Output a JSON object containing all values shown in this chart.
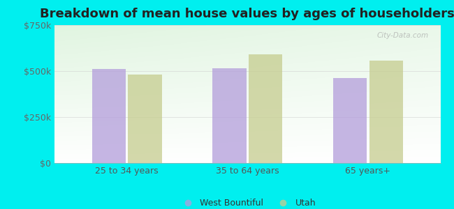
{
  "title": "Breakdown of mean house values by ages of householders",
  "categories": [
    "25 to 34 years",
    "35 to 64 years",
    "65 years+"
  ],
  "series": {
    "West Bountiful": [
      510000,
      515000,
      463000
    ],
    "Utah": [
      480000,
      590000,
      558000
    ]
  },
  "bar_colors": {
    "West Bountiful": "#b39ddb",
    "Utah": "#c5cc8e"
  },
  "ylim": [
    0,
    750000
  ],
  "yticks": [
    0,
    250000,
    500000,
    750000
  ],
  "ytick_labels": [
    "$0",
    "$250k",
    "$500k",
    "$750k"
  ],
  "background_color": "#00efef",
  "title_fontsize": 13,
  "bar_width": 0.28,
  "watermark": "City-Data.com"
}
